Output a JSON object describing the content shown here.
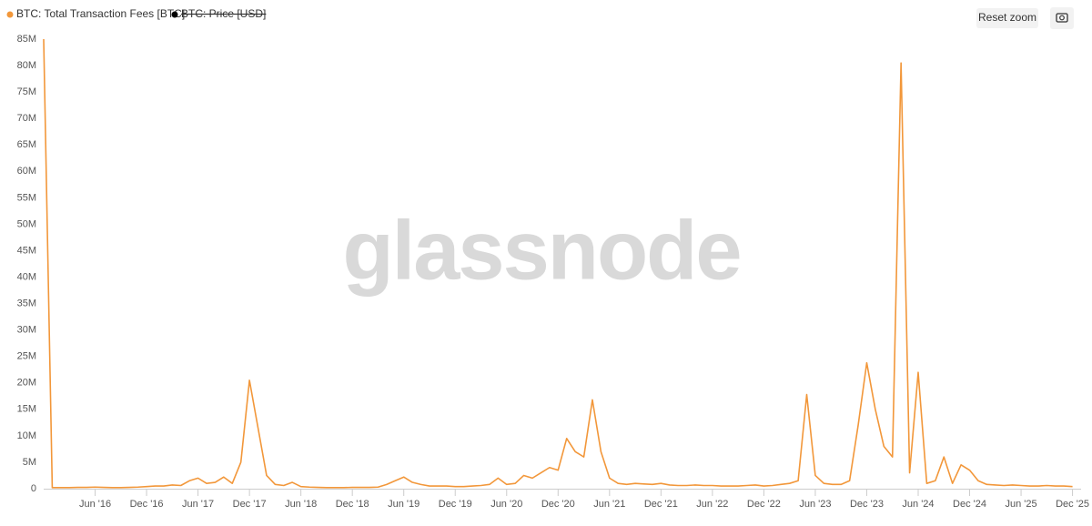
{
  "chart_data": {
    "type": "line",
    "watermark": "glassnode",
    "buttons": [
      "Reset zoom"
    ],
    "hidden_series": [
      {
        "name": "BTC: Price [USD]",
        "color": "#000000"
      }
    ],
    "x": [
      "2015-12",
      "2016-01",
      "2016-02",
      "2016-03",
      "2016-04",
      "2016-05",
      "2016-06",
      "2016-07",
      "2016-08",
      "2016-09",
      "2016-10",
      "2016-11",
      "2016-12",
      "2017-01",
      "2017-02",
      "2017-03",
      "2017-04",
      "2017-05",
      "2017-06",
      "2017-07",
      "2017-08",
      "2017-09",
      "2017-10",
      "2017-11",
      "2017-12",
      "2018-01",
      "2018-02",
      "2018-03",
      "2018-04",
      "2018-05",
      "2018-06",
      "2018-07",
      "2018-08",
      "2018-09",
      "2018-10",
      "2018-11",
      "2018-12",
      "2019-01",
      "2019-02",
      "2019-03",
      "2019-04",
      "2019-05",
      "2019-06",
      "2019-07",
      "2019-08",
      "2019-09",
      "2019-10",
      "2019-11",
      "2019-12",
      "2020-01",
      "2020-02",
      "2020-03",
      "2020-04",
      "2020-05",
      "2020-06",
      "2020-07",
      "2020-08",
      "2020-09",
      "2020-10",
      "2020-11",
      "2020-12",
      "2021-01",
      "2021-02",
      "2021-03",
      "2021-04",
      "2021-05",
      "2021-06",
      "2021-07",
      "2021-08",
      "2021-09",
      "2021-10",
      "2021-11",
      "2021-12",
      "2022-01",
      "2022-02",
      "2022-03",
      "2022-04",
      "2022-05",
      "2022-06",
      "2022-07",
      "2022-08",
      "2022-09",
      "2022-10",
      "2022-11",
      "2022-12",
      "2023-01",
      "2023-02",
      "2023-03",
      "2023-04",
      "2023-05",
      "2023-06",
      "2023-07",
      "2023-08",
      "2023-09",
      "2023-10",
      "2023-11",
      "2023-12",
      "2024-01",
      "2024-02",
      "2024-03",
      "2024-04",
      "2024-05",
      "2024-06",
      "2024-07",
      "2024-08",
      "2024-09",
      "2024-10",
      "2024-11",
      "2024-12",
      "2025-01",
      "2025-02",
      "2025-03",
      "2025-04",
      "2025-05",
      "2025-06",
      "2025-07",
      "2025-08",
      "2025-09",
      "2025-10",
      "2025-11",
      "2025-12"
    ],
    "series": [
      {
        "name": "BTC: Total Transaction Fees [BTC]",
        "color": "#f2973a",
        "values": [
          85000000,
          200000,
          200000,
          200000,
          250000,
          250000,
          300000,
          250000,
          200000,
          200000,
          250000,
          300000,
          400000,
          500000,
          500000,
          700000,
          600000,
          1500000,
          2000000,
          1000000,
          1200000,
          2200000,
          1000000,
          5000000,
          20500000,
          11500000,
          2500000,
          800000,
          600000,
          1200000,
          400000,
          300000,
          250000,
          200000,
          200000,
          200000,
          250000,
          250000,
          250000,
          300000,
          800000,
          1500000,
          2200000,
          1200000,
          800000,
          500000,
          500000,
          500000,
          400000,
          400000,
          500000,
          600000,
          800000,
          2000000,
          800000,
          1000000,
          2500000,
          2000000,
          3000000,
          4000000,
          3500000,
          9500000,
          7000000,
          6000000,
          16800000,
          7000000,
          2000000,
          1000000,
          800000,
          1000000,
          900000,
          800000,
          1000000,
          700000,
          600000,
          600000,
          700000,
          600000,
          600000,
          500000,
          500000,
          500000,
          600000,
          700000,
          500000,
          600000,
          800000,
          1000000,
          1500000,
          17800000,
          2500000,
          1000000,
          800000,
          800000,
          1500000,
          12000000,
          23800000,
          15000000,
          8000000,
          6000000,
          80500000,
          3000000,
          22000000,
          1000000,
          1500000,
          6000000,
          1000000,
          4500000,
          3500000,
          1500000,
          800000,
          700000,
          600000,
          700000,
          600000,
          500000,
          500000,
          600000,
          500000,
          500000,
          400000
        ]
      }
    ],
    "xlim": [
      "2015-12",
      "2026-01"
    ],
    "xticks": [
      {
        "value": "2016-06",
        "label": "Jun '16"
      },
      {
        "value": "2016-12",
        "label": "Dec '16"
      },
      {
        "value": "2017-06",
        "label": "Jun '17"
      },
      {
        "value": "2017-12",
        "label": "Dec '17"
      },
      {
        "value": "2018-06",
        "label": "Jun '18"
      },
      {
        "value": "2018-12",
        "label": "Dec '18"
      },
      {
        "value": "2019-06",
        "label": "Jun '19"
      },
      {
        "value": "2019-12",
        "label": "Dec '19"
      },
      {
        "value": "2020-06",
        "label": "Jun '20"
      },
      {
        "value": "2020-12",
        "label": "Dec '20"
      },
      {
        "value": "2021-06",
        "label": "Jun '21"
      },
      {
        "value": "2021-12",
        "label": "Dec '21"
      },
      {
        "value": "2022-06",
        "label": "Jun '22"
      },
      {
        "value": "2022-12",
        "label": "Dec '22"
      },
      {
        "value": "2023-06",
        "label": "Jun '23"
      },
      {
        "value": "2023-12",
        "label": "Dec '23"
      },
      {
        "value": "2024-06",
        "label": "Jun '24"
      },
      {
        "value": "2024-12",
        "label": "Dec '24"
      },
      {
        "value": "2025-06",
        "label": "Jun '25"
      },
      {
        "value": "2025-12",
        "label": "Dec '25"
      }
    ],
    "ylim": [
      0,
      85000000
    ],
    "yticks": [
      0,
      {
        "value": 5000000,
        "label": "5M"
      },
      {
        "value": 10000000,
        "label": "10M"
      },
      {
        "value": 15000000,
        "label": "15M"
      },
      {
        "value": 20000000,
        "label": "20M"
      },
      {
        "value": 25000000,
        "label": "25M"
      },
      {
        "value": 30000000,
        "label": "30M"
      },
      {
        "value": 35000000,
        "label": "35M"
      },
      {
        "value": 40000000,
        "label": "40M"
      },
      {
        "value": 45000000,
        "label": "45M"
      },
      {
        "value": 50000000,
        "label": "50M"
      },
      {
        "value": 55000000,
        "label": "55M"
      },
      {
        "value": 60000000,
        "label": "60M"
      },
      {
        "value": 65000000,
        "label": "65M"
      },
      {
        "value": 70000000,
        "label": "70M"
      },
      {
        "value": 75000000,
        "label": "75M"
      },
      {
        "value": 80000000,
        "label": "80M"
      },
      {
        "value": 85000000,
        "label": "85M"
      }
    ],
    "grid": false
  }
}
